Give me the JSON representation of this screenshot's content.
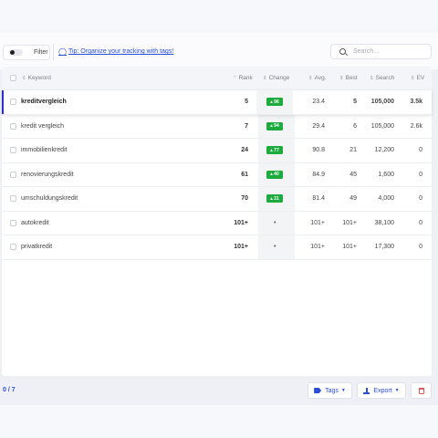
{
  "toolbar": {
    "filter_label": "Filter",
    "tip_label": "Tip: Organize your tracking with tags!",
    "search_placeholder": "Search..."
  },
  "table": {
    "headers": {
      "keyword": "Keyword",
      "rank": "Rank",
      "change": "Change",
      "avg": "Avg.",
      "best": "Best",
      "search": "Search",
      "ev": "EV"
    },
    "rows": [
      {
        "keyword": "kreditvergleich",
        "rank": "5",
        "change": "96",
        "avg": "23.4",
        "best": "5",
        "search": "105,000",
        "ev": "3.5k",
        "active": true
      },
      {
        "keyword": "kredit vergleich",
        "rank": "7",
        "change": "94",
        "avg": "29.4",
        "best": "6",
        "search": "105,000",
        "ev": "2.6k"
      },
      {
        "keyword": "immobilienkredit",
        "rank": "24",
        "change": "77",
        "avg": "90.8",
        "best": "21",
        "search": "12,200",
        "ev": "0"
      },
      {
        "keyword": "renovierungskredit",
        "rank": "61",
        "change": "40",
        "avg": "84.9",
        "best": "45",
        "search": "1,600",
        "ev": "0"
      },
      {
        "keyword": "umschuldungskredit",
        "rank": "70",
        "change": "31",
        "avg": "81.4",
        "best": "49",
        "search": "4,000",
        "ev": "0"
      },
      {
        "keyword": "autokredit",
        "rank": "101+",
        "change": "",
        "avg": "101+",
        "best": "101+",
        "search": "38,100",
        "ev": "0"
      },
      {
        "keyword": "privatkredit",
        "rank": "101+",
        "change": "",
        "avg": "101+",
        "best": "101+",
        "search": "17,300",
        "ev": "0"
      }
    ]
  },
  "footer": {
    "selection_count": "0 / 7",
    "tags_label": "Tags",
    "export_label": "Export"
  },
  "colors": {
    "accent": "#2a4fd6",
    "badge_green": "#1cab3c",
    "active_marker": "#2e2fc8",
    "delete_red": "#e05a5a"
  },
  "icons": {
    "tip": "lightbulb-icon",
    "search": "search-icon",
    "tags": "tag-icon",
    "export": "download-icon",
    "delete": "trash-icon"
  }
}
